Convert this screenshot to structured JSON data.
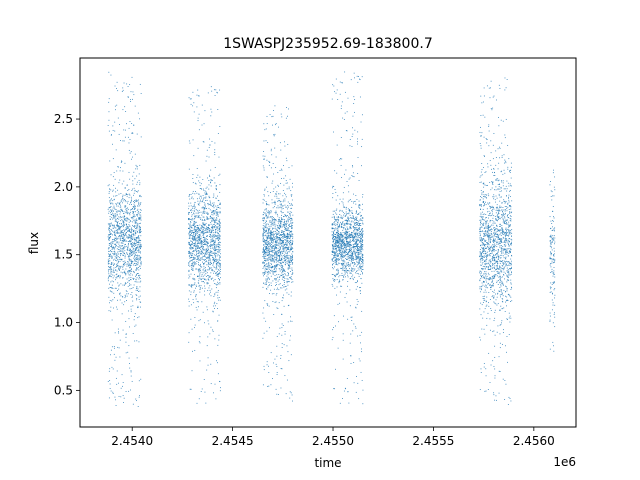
{
  "chart_data": {
    "type": "scatter",
    "title": "1SWASPJ235952.69-183800.7",
    "xlabel": "time",
    "ylabel": "flux",
    "x_offset_label": "1e6",
    "xlim": [
      2453740,
      2456210
    ],
    "ylim": [
      0.23,
      2.95
    ],
    "grid": false,
    "point_color": "#1f77b4",
    "xticks": [
      {
        "value": 2454000,
        "label": "2.4540"
      },
      {
        "value": 2454500,
        "label": "2.4545"
      },
      {
        "value": 2455000,
        "label": "2.4550"
      },
      {
        "value": 2455500,
        "label": "2.4555"
      },
      {
        "value": 2456000,
        "label": "2.4560"
      }
    ],
    "yticks": [
      {
        "value": 0.5,
        "label": "0.5"
      },
      {
        "value": 1.0,
        "label": "1.0"
      },
      {
        "value": 1.5,
        "label": "1.5"
      },
      {
        "value": 2.0,
        "label": "2.0"
      },
      {
        "value": 2.5,
        "label": "2.5"
      }
    ],
    "seasons": [
      {
        "x_start": 2453880,
        "x_end": 2454045,
        "center_flux": 1.6,
        "core_low": 1.3,
        "core_high": 1.95,
        "min_flux": 0.37,
        "max_flux": 2.85
      },
      {
        "x_start": 2454280,
        "x_end": 2454440,
        "center_flux": 1.6,
        "core_low": 1.3,
        "core_high": 1.9,
        "min_flux": 0.4,
        "max_flux": 2.75
      },
      {
        "x_start": 2454650,
        "x_end": 2454800,
        "center_flux": 1.58,
        "core_low": 1.35,
        "core_high": 1.85,
        "min_flux": 0.42,
        "max_flux": 2.6
      },
      {
        "x_start": 2454995,
        "x_end": 2455150,
        "center_flux": 1.58,
        "core_low": 1.38,
        "core_high": 1.8,
        "min_flux": 0.4,
        "max_flux": 2.85
      },
      {
        "x_start": 2455730,
        "x_end": 2455890,
        "center_flux": 1.58,
        "core_low": 1.2,
        "core_high": 1.95,
        "min_flux": 0.37,
        "max_flux": 2.82
      },
      {
        "x_start": 2456080,
        "x_end": 2456105,
        "center_flux": 1.5,
        "core_low": 1.1,
        "core_high": 1.9,
        "min_flux": 0.74,
        "max_flux": 2.13
      }
    ]
  }
}
